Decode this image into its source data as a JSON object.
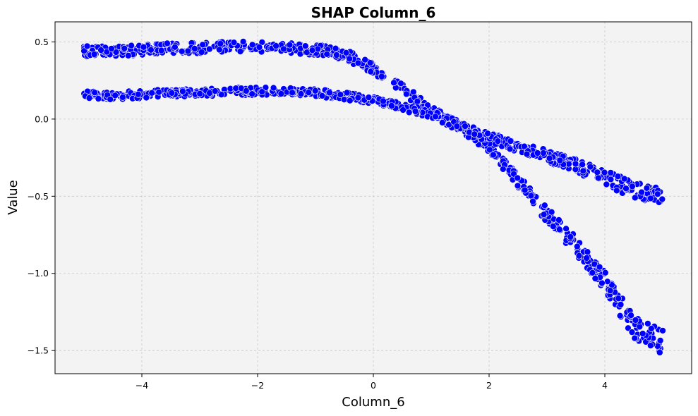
{
  "chart_data": {
    "type": "scatter",
    "title": "SHAP Column_6",
    "xlabel": "Column_6",
    "ylabel": "Value",
    "xlim": [
      -5.5,
      5.5
    ],
    "ylim": [
      -1.65,
      0.63
    ],
    "xticks": [
      -4,
      -2,
      0,
      2,
      4
    ],
    "xtick_labels": [
      "−4",
      "−2",
      "0",
      "2",
      "4"
    ],
    "yticks": [
      0.5,
      0.0,
      -0.5,
      -1.0,
      -1.5
    ],
    "ytick_labels": [
      "0.5",
      "0.0",
      "−0.5",
      "−1.0",
      "−1.5"
    ],
    "grid": true,
    "legend": "none",
    "colors": {
      "marker_fill": "#0000ff",
      "marker_edge": "#ffffff",
      "plot_background": "#f3f3f3",
      "grid": "#c8c8c8"
    },
    "series": [
      {
        "x": [
          -5,
          -4.5,
          -4,
          -3.5,
          -3,
          -2.5,
          -2,
          -1.5,
          -1,
          -0.5,
          0,
          0.5,
          1,
          1.5,
          2,
          2.5,
          3,
          3.5,
          4,
          4.5,
          5
        ],
        "y": [
          0.44,
          0.44,
          0.45,
          0.46,
          0.46,
          0.47,
          0.47,
          0.46,
          0.45,
          0.42,
          0.33,
          0.2,
          0.05,
          -0.05,
          -0.18,
          -0.4,
          -0.62,
          -0.82,
          -1.05,
          -1.35,
          -1.45
        ]
      },
      {
        "x": [
          -5,
          -4.5,
          -4,
          -3.5,
          -3,
          -2.5,
          -2,
          -1.5,
          -1,
          -0.5,
          0,
          0.5,
          1,
          1.5,
          2,
          2.5,
          3,
          3.5,
          4,
          4.5,
          5
        ],
        "y": [
          0.16,
          0.15,
          0.16,
          0.17,
          0.17,
          0.18,
          0.18,
          0.18,
          0.17,
          0.15,
          0.12,
          0.08,
          0.03,
          -0.04,
          -0.12,
          -0.18,
          -0.24,
          -0.3,
          -0.38,
          -0.46,
          -0.5
        ]
      }
    ]
  }
}
